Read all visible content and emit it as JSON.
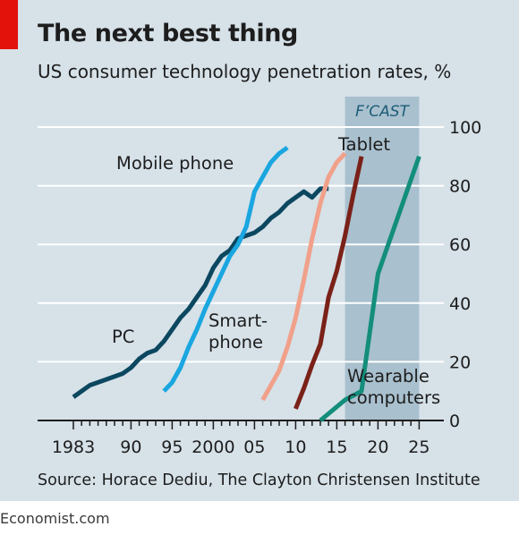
{
  "colors": {
    "background": "#d6e1e8",
    "forecast_band": "#a9c0ce",
    "gridline": "#ffffff",
    "brand_red": "#e3120b",
    "text": "#1d1d1d",
    "pc": "#0c4760",
    "mobile_phone": "#1aa6e0",
    "smartphone": "#f1a08a",
    "tablet": "#7a2118",
    "wearable": "#138e7c"
  },
  "chart_data": {
    "type": "line",
    "title": "The next best thing",
    "subtitle": "US consumer technology penetration rates, %",
    "xlabel": "",
    "ylabel": "",
    "xlim": [
      1981,
      2029
    ],
    "ylim": [
      0,
      100
    ],
    "grid": true,
    "y_axis_side": "right",
    "x_ticks": [
      1983,
      1990,
      1995,
      2000,
      2005,
      2010,
      2015,
      2020,
      2025
    ],
    "x_tick_labels": [
      "1983",
      "90",
      "95",
      "2000",
      "05",
      "10",
      "15",
      "20",
      "25"
    ],
    "y_ticks": [
      0,
      20,
      40,
      60,
      80,
      100
    ],
    "y_tick_labels": [
      "0",
      "20",
      "40",
      "60",
      "80",
      "100"
    ],
    "forecast": {
      "label": "F’CAST",
      "from": 2016,
      "to": 2025
    },
    "source": "Source: Horace Dediu, The Clayton Christensen Institute",
    "brand": "Economist.com",
    "series": [
      {
        "name": "PC",
        "color_key": "pc",
        "points": [
          [
            1983,
            8
          ],
          [
            1985,
            12
          ],
          [
            1987,
            14
          ],
          [
            1989,
            16
          ],
          [
            1990,
            18
          ],
          [
            1991,
            21
          ],
          [
            1992,
            23
          ],
          [
            1993,
            24
          ],
          [
            1994,
            27
          ],
          [
            1995,
            31
          ],
          [
            1996,
            35
          ],
          [
            1997,
            38
          ],
          [
            1998,
            42
          ],
          [
            1999,
            46
          ],
          [
            2000,
            52
          ],
          [
            2001,
            56
          ],
          [
            2002,
            58
          ],
          [
            2003,
            62
          ],
          [
            2004,
            63
          ],
          [
            2005,
            64
          ],
          [
            2006,
            66
          ],
          [
            2007,
            69
          ],
          [
            2008,
            71
          ],
          [
            2009,
            74
          ],
          [
            2010,
            76
          ],
          [
            2011,
            78
          ],
          [
            2012,
            76
          ],
          [
            2013,
            79
          ],
          [
            2014,
            79
          ]
        ]
      },
      {
        "name": "Mobile phone",
        "color_key": "mobile_phone",
        "points": [
          [
            1994,
            10
          ],
          [
            1995,
            13
          ],
          [
            1996,
            18
          ],
          [
            1997,
            25
          ],
          [
            1998,
            31
          ],
          [
            1999,
            38
          ],
          [
            2000,
            44
          ],
          [
            2001,
            50
          ],
          [
            2002,
            56
          ],
          [
            2003,
            60
          ],
          [
            2004,
            66
          ],
          [
            2005,
            78
          ],
          [
            2006,
            83
          ],
          [
            2007,
            88
          ],
          [
            2008,
            91
          ],
          [
            2009,
            93
          ]
        ]
      },
      {
        "name": "Smart-phone",
        "color_key": "smartphone",
        "points": [
          [
            2006,
            7
          ],
          [
            2007,
            12
          ],
          [
            2008,
            17
          ],
          [
            2009,
            25
          ],
          [
            2010,
            35
          ],
          [
            2011,
            48
          ],
          [
            2012,
            62
          ],
          [
            2013,
            74
          ],
          [
            2014,
            83
          ],
          [
            2015,
            88
          ],
          [
            2016,
            91
          ]
        ]
      },
      {
        "name": "Tablet",
        "color_key": "tablet",
        "points": [
          [
            2010,
            4
          ],
          [
            2011,
            11
          ],
          [
            2012,
            19
          ],
          [
            2013,
            26
          ],
          [
            2014,
            42
          ],
          [
            2015,
            51
          ],
          [
            2016,
            63
          ],
          [
            2017,
            77
          ],
          [
            2018,
            90
          ]
        ]
      },
      {
        "name": "Wearable computers",
        "color_key": "wearable",
        "points": [
          [
            2013,
            0
          ],
          [
            2016,
            7
          ],
          [
            2018,
            10
          ],
          [
            2020,
            50
          ],
          [
            2025,
            90
          ]
        ]
      }
    ],
    "series_labels": [
      {
        "series": "Mobile phone",
        "lines": [
          "Mobile phone"
        ]
      },
      {
        "series": "PC",
        "lines": [
          "PC"
        ]
      },
      {
        "series": "Smart-phone",
        "lines": [
          "Smart-",
          "phone"
        ]
      },
      {
        "series": "Tablet",
        "lines": [
          "Tablet"
        ]
      },
      {
        "series": "Wearable computers",
        "lines": [
          "Wearable",
          "computers"
        ]
      }
    ]
  }
}
